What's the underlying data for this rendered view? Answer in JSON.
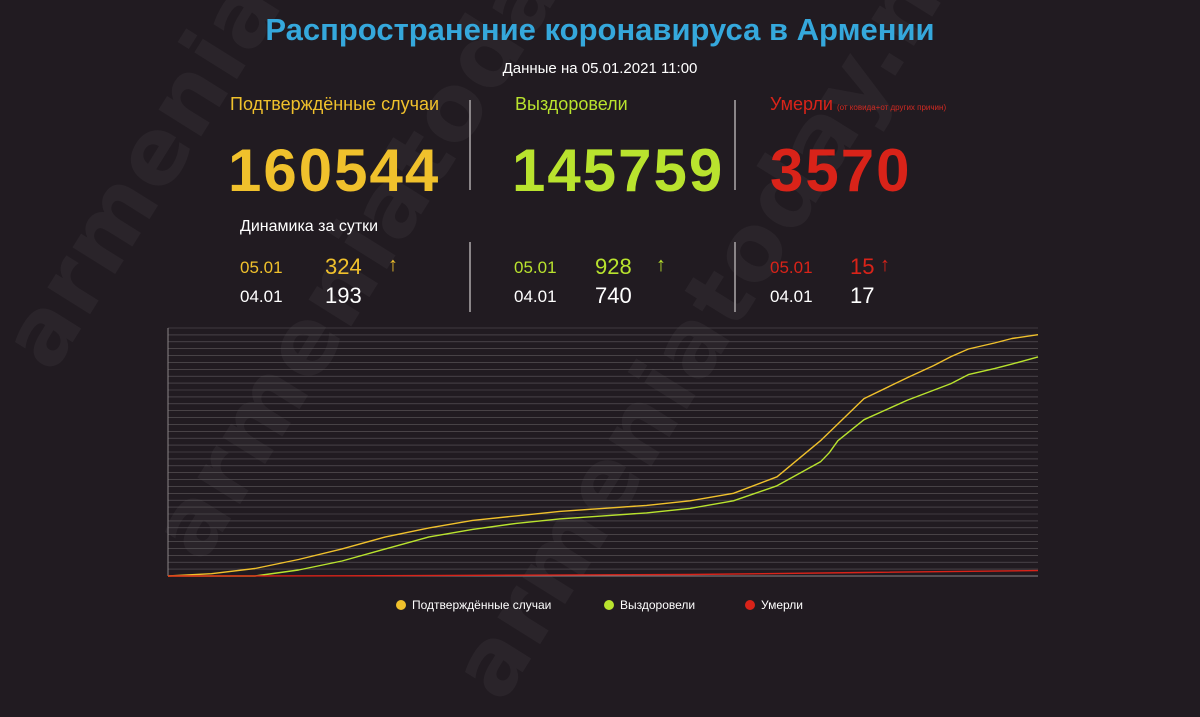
{
  "header": {
    "title": "Распространение коронавируса в Армении",
    "subtitle": "Данные на 05.01.2021 11:00"
  },
  "stats": {
    "confirmed": {
      "label": "Подтверждённые случаи",
      "value": "160544",
      "color": "#f0c12c"
    },
    "recovered": {
      "label": "Выздоровели",
      "value": "145759",
      "color": "#b9e32e"
    },
    "deaths": {
      "label": "Умерли",
      "note": "(от ковида+от других причин)",
      "value": "3570",
      "color": "#d92319"
    }
  },
  "dynamics": {
    "title": "Динамика за сутки",
    "confirmed": {
      "today_date": "05.01",
      "today_value": "324",
      "prev_date": "04.01",
      "prev_value": "193"
    },
    "recovered": {
      "today_date": "05.01",
      "today_value": "928",
      "prev_date": "04.01",
      "prev_value": "740"
    },
    "deaths": {
      "today_date": "05.01",
      "today_value": "15",
      "prev_date": "04.01",
      "prev_value": "17"
    }
  },
  "watermark": "armeniatoday.news",
  "chart_data": {
    "type": "line",
    "title": "",
    "xlabel": "",
    "ylabel": "",
    "ylim": [
      0,
      165000
    ],
    "grid": true,
    "legend": "bottom",
    "series": [
      {
        "name": "Подтверждённые случаи",
        "color": "#f0c12c",
        "x": [
          0,
          5,
          10,
          15,
          20,
          25,
          30,
          35,
          40,
          45,
          50,
          55,
          60,
          65,
          70,
          75,
          80,
          85,
          88,
          90,
          92,
          95,
          97,
          100
        ],
        "values": [
          0,
          1500,
          5000,
          11000,
          18000,
          26000,
          32000,
          37000,
          40000,
          43000,
          45000,
          47000,
          50000,
          55000,
          66000,
          90000,
          118000,
          132000,
          140000,
          146000,
          151000,
          155000,
          158000,
          160544
        ]
      },
      {
        "name": "Выздоровели",
        "color": "#b9e32e",
        "x": [
          0,
          10,
          15,
          20,
          25,
          30,
          35,
          40,
          45,
          50,
          55,
          60,
          65,
          70,
          75,
          76,
          77,
          80,
          85,
          90,
          92,
          95,
          97,
          100
        ],
        "values": [
          0,
          0,
          4000,
          10000,
          18000,
          26000,
          31000,
          35000,
          38000,
          40000,
          42000,
          45000,
          50000,
          60000,
          76000,
          82000,
          90000,
          104000,
          117000,
          128000,
          134000,
          138000,
          141000,
          145759
        ]
      },
      {
        "name": "Умерли",
        "color": "#d92319",
        "x": [
          0,
          20,
          40,
          60,
          80,
          100
        ],
        "values": [
          0,
          100,
          500,
          1000,
          2300,
          3570
        ]
      }
    ]
  }
}
